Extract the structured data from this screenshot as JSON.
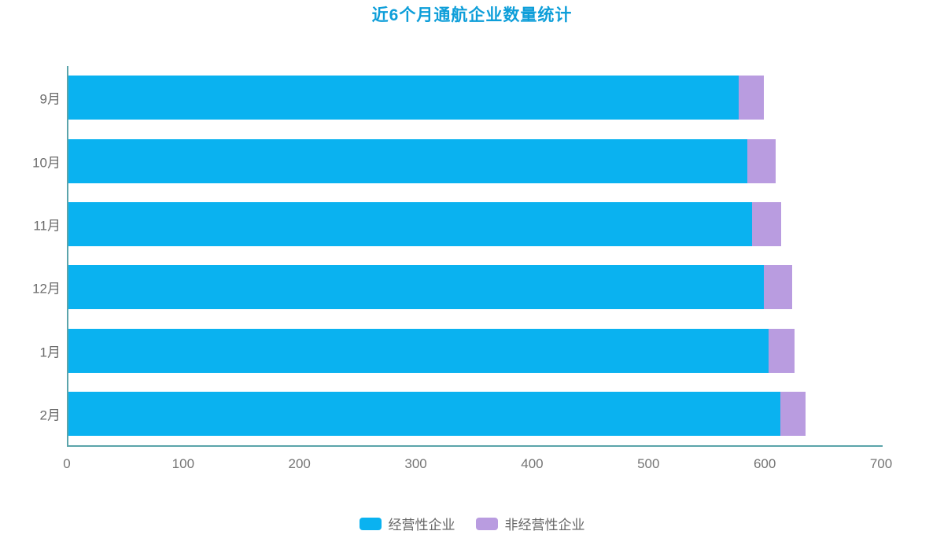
{
  "title": "近6个月通航企业数量统计",
  "colors": {
    "title": "#0d9ed9",
    "axis_line": "#5ba4aa",
    "tick_label": "#757575",
    "category_label": "#6b6b6b",
    "legend_label": "#666666",
    "series_operational": "#0ab2f0",
    "series_non_operational": "#b99ce0"
  },
  "chart_data": {
    "type": "bar",
    "orientation": "horizontal",
    "stacked": true,
    "title": "近6个月通航企业数量统计",
    "categories": [
      "9月",
      "10月",
      "11月",
      "12月",
      "1月",
      "2月"
    ],
    "series": [
      {
        "name": "经营性企业",
        "color": "#0ab2f0",
        "values": [
          576,
          584,
          588,
          598,
          602,
          612
        ]
      },
      {
        "name": "非经营性企业",
        "color": "#b99ce0",
        "values": [
          22,
          24,
          25,
          24,
          22,
          22
        ]
      }
    ],
    "totals": [
      598,
      608,
      613,
      622,
      624,
      634
    ],
    "xlabel": "",
    "ylabel": "",
    "xlim": [
      0,
      700
    ],
    "x_ticks": [
      0,
      100,
      200,
      300,
      400,
      500,
      600,
      700
    ],
    "grid": false,
    "legend_position": "bottom",
    "legend_entries": [
      "经营性企业",
      "非经营性企业"
    ]
  }
}
